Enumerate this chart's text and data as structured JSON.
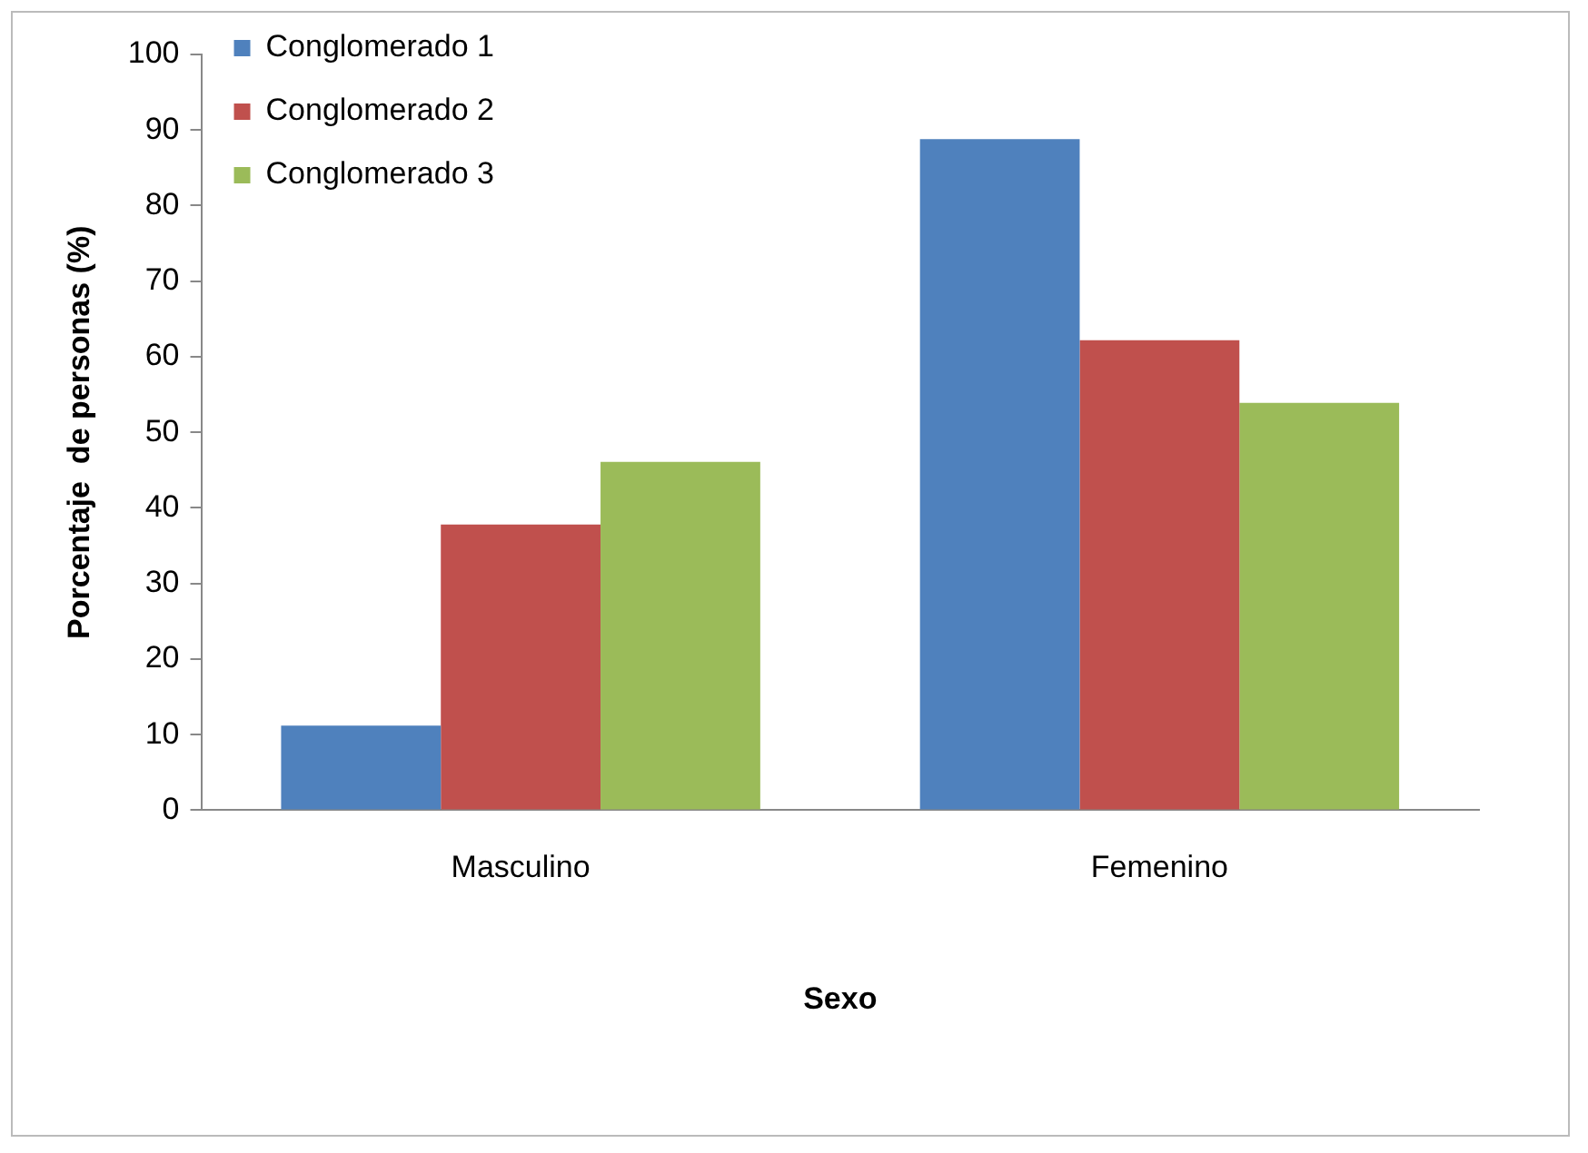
{
  "chart_data": {
    "type": "bar",
    "xlabel": "Sexo",
    "ylabel": "Porcentaje  de personas (%)",
    "categories": [
      "Masculino",
      "Femenino"
    ],
    "series": [
      {
        "name": "Conglomerado 1",
        "color": "#4f81bd",
        "values": [
          11.2,
          88.8
        ]
      },
      {
        "name": "Conglomerado 2",
        "color": "#c0504d",
        "values": [
          37.8,
          62.2
        ]
      },
      {
        "name": "Conglomerado 3",
        "color": "#9bbb59",
        "values": [
          46.1,
          53.9
        ]
      }
    ],
    "ylim": [
      0,
      100
    ],
    "yticks": [
      0,
      10,
      20,
      30,
      40,
      50,
      60,
      70,
      80,
      90,
      100
    ],
    "grid": false,
    "legend": "top left"
  }
}
